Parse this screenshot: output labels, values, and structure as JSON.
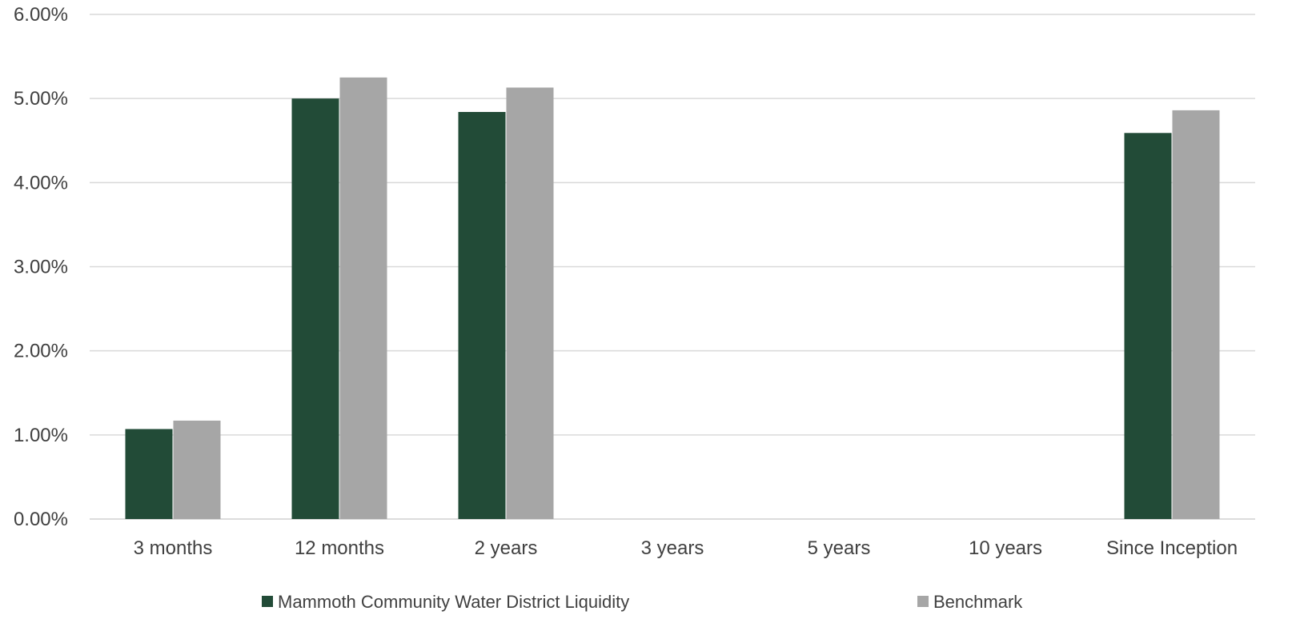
{
  "chart_data": {
    "type": "bar",
    "categories": [
      "3 months",
      "12 months",
      "2 years",
      "3 years",
      "5 years",
      "10 years",
      "Since Inception"
    ],
    "series": [
      {
        "name": "Mammoth Community Water District Liquidity",
        "color": "#224b37",
        "values": [
          1.07,
          5.0,
          4.84,
          null,
          null,
          null,
          4.59
        ]
      },
      {
        "name": "Benchmark",
        "color": "#a6a6a6",
        "values": [
          1.17,
          5.25,
          5.13,
          null,
          null,
          null,
          4.86
        ]
      }
    ],
    "ylim": [
      0,
      6
    ],
    "yticks": [
      0,
      1,
      2,
      3,
      4,
      5,
      6
    ],
    "ytick_labels": [
      "0.00%",
      "1.00%",
      "2.00%",
      "3.00%",
      "4.00%",
      "5.00%",
      "6.00%"
    ],
    "title": "",
    "xlabel": "",
    "ylabel": "",
    "grid": true,
    "legend_position": "bottom"
  }
}
